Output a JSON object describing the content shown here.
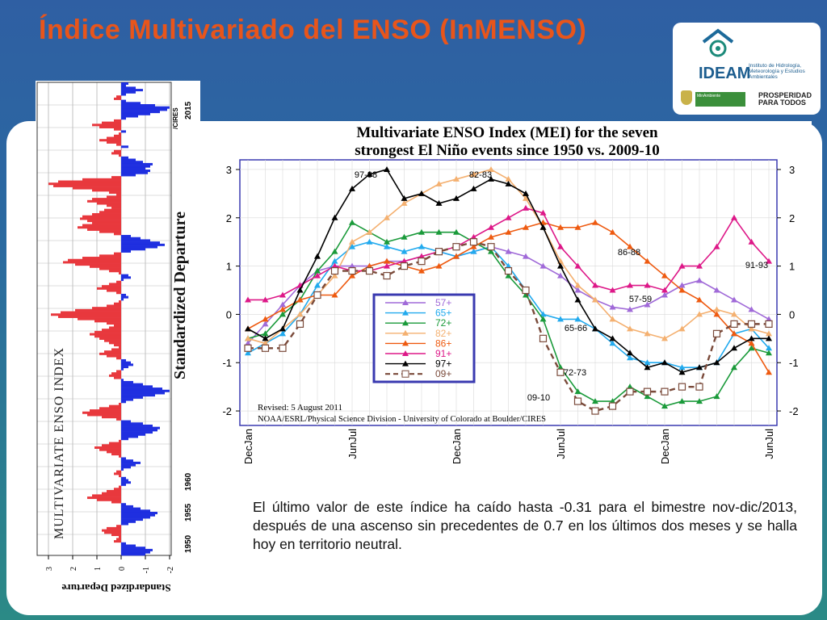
{
  "slide": {
    "title": "Índice Multivariado del ENSO (InMENSO)",
    "caption": "El último valor de este índice ha caído hasta -0.31 para el bimestre nov-dic/2013, después de una ascenso sin precedentes de 0.7 en los últimos dos meses y se halla hoy en territorio neutral."
  },
  "logo": {
    "name": "IDEAM",
    "institute": "Instituto de Hidrología, Meteorología y Estudios Ambientales",
    "ministry": "MinAmbiente",
    "slogan": "PROSPERIDAD PARA TODOS"
  },
  "colors": {
    "title": "#e8551b",
    "positive": "#e8383d",
    "negative": "#1f2fe0"
  },
  "chart_data": [
    {
      "type": "bar",
      "title": "MULTIVARIATE ENSO INDEX",
      "ylabel": "Standardized Departure",
      "credit": "/CIRES",
      "year_labels": [
        "1950",
        "1955",
        "1960",
        "2015"
      ],
      "ylim": [
        -3,
        3
      ],
      "ticks": [
        "3",
        "2",
        "1",
        "0",
        "-1",
        "-2"
      ],
      "series": [
        {
          "name": "MEI",
          "values": [
            -1.0,
            -1.2,
            -1.3,
            -1.0,
            -0.6,
            -0.2,
            0.3,
            0.2,
            0.1,
            0.4,
            0.7,
            0.8,
            0.6,
            0.2,
            -0.3,
            -0.6,
            -0.9,
            -1.2,
            -1.4,
            -1.5,
            -1.2,
            -0.8,
            -0.5,
            -0.2,
            0.4,
            1.0,
            1.4,
            1.2,
            0.8,
            0.6,
            0.3,
            0.1,
            -0.2,
            -0.4,
            -0.3,
            -0.2,
            0.1,
            0.3,
            0.2,
            -0.1,
            -0.4,
            -0.6,
            -0.8,
            -0.5,
            -0.2,
            0.1,
            0.4,
            0.6,
            0.9,
            1.1,
            0.8,
            0.5,
            0.1,
            -0.3,
            -0.7,
            -1.0,
            -1.3,
            -1.5,
            -1.6,
            -1.3,
            -0.9,
            -0.4,
            0.2,
            0.8,
            1.4,
            1.6,
            1.3,
            0.9,
            0.5,
            0.1,
            -0.2,
            -0.5,
            -0.9,
            -1.4,
            -1.8,
            -2.0,
            -1.7,
            -1.3,
            -0.9,
            -0.5,
            -0.1,
            0.3,
            0.5,
            0.4,
            0.2,
            -0.1,
            -0.3,
            -0.5,
            -0.4,
            -0.2,
            0.2,
            0.6,
            0.9,
            0.7,
            0.4,
            0.1,
            0.3,
            0.5,
            0.7,
            0.9,
            1.1,
            1.3,
            1.1,
            0.8,
            0.5,
            0.3,
            0.6,
            1.1,
            1.8,
            2.6,
            2.9,
            2.5,
            1.9,
            1.2,
            0.6,
            0.3,
            0.1,
            -0.1,
            -0.3,
            -0.2,
            0.2,
            0.6,
            1.0,
            0.8,
            0.5,
            0.2,
            -0.1,
            -0.4,
            -0.3,
            0.1,
            0.5,
            0.9,
            1.3,
            1.9,
            2.4,
            2.2,
            1.6,
            0.9,
            0.3,
            -0.4,
            -1.0,
            -1.5,
            -1.8,
            -1.6,
            -1.2,
            -0.8,
            -0.4,
            0.3,
            0.9,
            1.4,
            1.8,
            1.6,
            1.2,
            1.4,
            1.7,
            1.6,
            1.2,
            0.9,
            0.7,
            0.4,
            0.6,
            1.0,
            1.4,
            1.2,
            0.6,
            0.2,
            0.5,
            1.2,
            2.0,
            2.8,
            3.0,
            2.6,
            1.6,
            0.4,
            -0.6,
            -1.1,
            -1.2,
            -1.0,
            -1.2,
            -1.3,
            -0.9,
            -0.6,
            -0.3,
            0.1,
            0.4,
            0.3,
            0.0,
            -0.3,
            0.2,
            0.6,
            0.9,
            0.6,
            0.3,
            0.1,
            -0.2,
            0.3,
            0.9,
            1.2,
            0.8,
            0.3,
            -0.2,
            -0.7,
            -1.2,
            -1.6,
            -1.9,
            -2.0,
            -1.4,
            -0.8,
            -0.2,
            0.3,
            0.2,
            -0.2,
            -0.6,
            -0.9,
            -0.6,
            -0.2,
            -0.3
          ]
        }
      ]
    },
    {
      "type": "line",
      "title": "Multivariate ENSO Index (MEI) for the seven strongest El Niño events since 1950 vs. 2009-10",
      "ylim": [
        -2.3,
        3.2
      ],
      "yticks": [
        "3",
        "2",
        "1",
        "0",
        "-1",
        "-2"
      ],
      "categories": [
        "DecJan",
        "JanFeb",
        "FebMar",
        "MarApr",
        "AprMay",
        "MayJun",
        "JunJul",
        "JulAug",
        "AugSep",
        "SepOct",
        "OctNov",
        "NovDec",
        "DecJan",
        "JanFeb",
        "FebMar",
        "MarApr",
        "AprMay",
        "MayJun",
        "JunJul",
        "JulAug",
        "AugSep",
        "SepOct",
        "OctNov",
        "NovDec",
        "DecJan",
        "JanFeb",
        "FebMar",
        "MarApr",
        "AprMay",
        "MayJun",
        "JunJul"
      ],
      "xtick_labels": [
        "DecJan",
        "JunJul",
        "DecJan",
        "JunJul",
        "DecJan",
        "JunJul"
      ],
      "revised": "Revised: 5 August 2011",
      "credit": "NOAA/ESRL/Physical Science Division - University of Colorado at Boulder/CIRES",
      "annotations": [
        "97-98",
        "82-83",
        "86-88",
        "91-93",
        "57-59",
        "65-66",
        "72-73",
        "09-10"
      ],
      "series": [
        {
          "name": "57+",
          "color": "#a06ad8",
          "marker": "triangle",
          "values": [
            -0.6,
            -0.2,
            0.2,
            0.6,
            0.9,
            1.0,
            1.0,
            1.0,
            1.1,
            1.1,
            1.2,
            1.3,
            1.2,
            1.3,
            1.4,
            1.3,
            1.2,
            1.0,
            0.8,
            0.5,
            0.3,
            0.15,
            0.1,
            0.2,
            0.4,
            0.6,
            0.7,
            0.5,
            0.3,
            0.1,
            -0.1
          ]
        },
        {
          "name": "65+",
          "color": "#22aaee",
          "marker": "triangle",
          "values": [
            -0.8,
            -0.6,
            -0.4,
            0.0,
            0.6,
            1.1,
            1.4,
            1.5,
            1.4,
            1.3,
            1.4,
            1.3,
            1.2,
            1.3,
            1.4,
            1.0,
            0.5,
            0.0,
            -0.1,
            -0.1,
            -0.3,
            -0.6,
            -0.9,
            -1.0,
            -1.0,
            -1.1,
            -1.1,
            -1.0,
            -0.4,
            -0.3,
            -0.7
          ]
        },
        {
          "name": "72+",
          "color": "#1a9a3a",
          "marker": "triangle",
          "values": [
            -0.5,
            -0.4,
            0.0,
            0.3,
            0.9,
            1.3,
            1.9,
            1.7,
            1.5,
            1.6,
            1.7,
            1.7,
            1.7,
            1.5,
            1.3,
            0.8,
            0.4,
            -0.1,
            -1.1,
            -1.6,
            -1.8,
            -1.8,
            -1.5,
            -1.7,
            -1.9,
            -1.8,
            -1.8,
            -1.7,
            -1.1,
            -0.7,
            -0.8
          ]
        },
        {
          "name": "82+",
          "color": "#f4b070",
          "marker": "triangle",
          "values": [
            -0.5,
            -0.6,
            -0.3,
            0.0,
            0.4,
            0.8,
            1.5,
            1.7,
            2.0,
            2.3,
            2.5,
            2.7,
            2.8,
            2.9,
            3.0,
            2.8,
            2.4,
            1.8,
            1.1,
            0.6,
            0.3,
            -0.1,
            -0.3,
            -0.4,
            -0.5,
            -0.3,
            0.0,
            0.1,
            0.0,
            -0.3,
            -0.4
          ]
        },
        {
          "name": "86+",
          "color": "#ee5a10",
          "marker": "triangle",
          "values": [
            -0.3,
            -0.1,
            0.1,
            0.3,
            0.4,
            0.4,
            0.8,
            1.0,
            1.1,
            1.0,
            0.9,
            1.0,
            1.2,
            1.4,
            1.6,
            1.7,
            1.8,
            1.9,
            1.8,
            1.8,
            1.9,
            1.7,
            1.4,
            1.1,
            0.8,
            0.5,
            0.3,
            0.0,
            -0.4,
            -0.6,
            -1.2
          ]
        },
        {
          "name": "91+",
          "color": "#dd1888",
          "marker": "triangle",
          "values": [
            0.3,
            0.3,
            0.4,
            0.6,
            0.8,
            1.0,
            0.9,
            0.9,
            1.0,
            1.1,
            1.2,
            1.3,
            1.4,
            1.6,
            1.8,
            2.0,
            2.2,
            2.1,
            1.4,
            1.0,
            0.6,
            0.5,
            0.6,
            0.6,
            0.5,
            1.0,
            1.0,
            1.4,
            2.0,
            1.5,
            1.1
          ]
        },
        {
          "name": "97+",
          "color": "#000000",
          "marker": "triangle",
          "values": [
            -0.3,
            -0.5,
            -0.3,
            0.5,
            1.2,
            2.0,
            2.6,
            2.9,
            3.0,
            2.4,
            2.5,
            2.3,
            2.4,
            2.6,
            2.8,
            2.7,
            2.5,
            1.8,
            1.0,
            0.3,
            -0.3,
            -0.5,
            -0.8,
            -1.1,
            -1.0,
            -1.2,
            -1.1,
            -1.0,
            -0.7,
            -0.5,
            -0.5
          ]
        },
        {
          "name": "09+",
          "color": "#7a4a3a",
          "marker": "square",
          "dash": true,
          "values": [
            -0.7,
            -0.7,
            -0.7,
            -0.2,
            0.4,
            0.9,
            0.9,
            0.9,
            0.8,
            1.0,
            1.1,
            1.3,
            1.4,
            1.5,
            1.4,
            0.9,
            0.5,
            -0.5,
            -1.2,
            -1.8,
            -2.0,
            -1.9,
            -1.6,
            -1.6,
            -1.6,
            -1.5,
            -1.5,
            -0.4,
            -0.2,
            -0.2,
            -0.2
          ]
        }
      ]
    }
  ]
}
